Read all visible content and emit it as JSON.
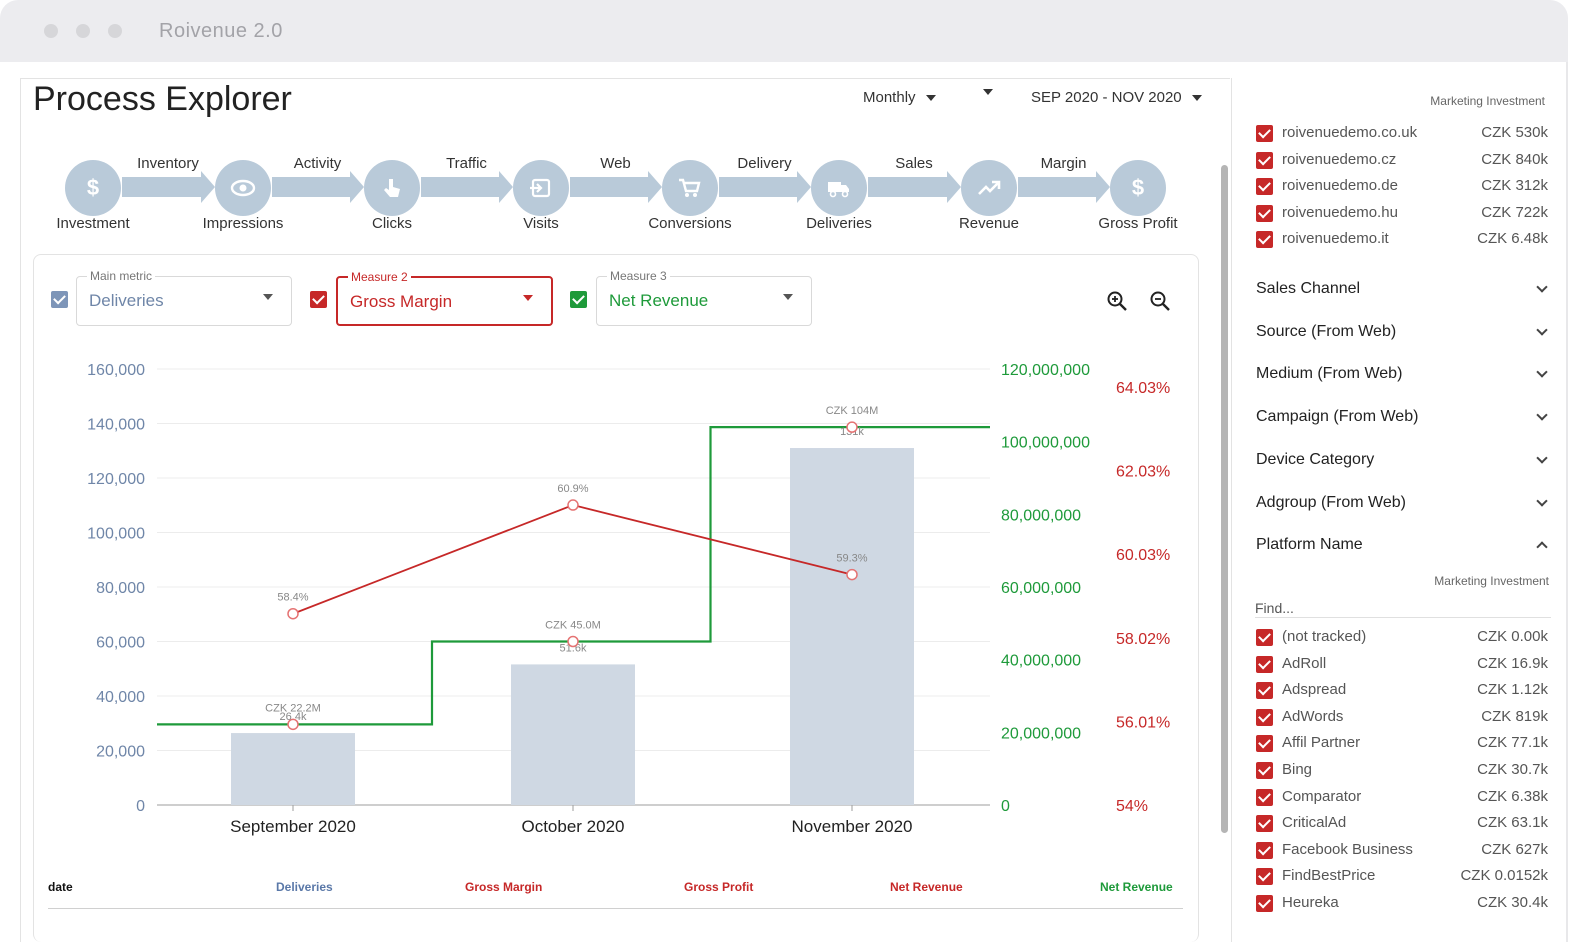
{
  "window": {
    "title": "Roivenue 2.0"
  },
  "page": {
    "title": "Process Explorer"
  },
  "controls": {
    "granularity": "Monthly",
    "date_range": "SEP 2020 - NOV 2020"
  },
  "funnel": {
    "stages": [
      {
        "label": "Investment",
        "icon": "dollar-icon"
      },
      {
        "label": "Impressions",
        "icon": "eye-icon"
      },
      {
        "label": "Clicks",
        "icon": "pointer-hand-icon"
      },
      {
        "label": "Visits",
        "icon": "enter-icon"
      },
      {
        "label": "Conversions",
        "icon": "cart-icon"
      },
      {
        "label": "Deliveries",
        "icon": "truck-icon"
      },
      {
        "label": "Revenue",
        "icon": "trending-up-icon"
      },
      {
        "label": "Gross Profit",
        "icon": "dollar-icon"
      }
    ],
    "transitions": [
      "Inventory",
      "Activity",
      "Traffic",
      "Web",
      "Delivery",
      "Sales",
      "Margin"
    ]
  },
  "metrics": {
    "main": {
      "caption": "Main metric",
      "value": "Deliveries",
      "color": "#6f86a8"
    },
    "measure2": {
      "caption": "Measure 2",
      "value": "Gross Margin",
      "color": "#c62828"
    },
    "measure3": {
      "caption": "Measure 3",
      "value": "Net Revenue",
      "color": "#1e9a3a"
    }
  },
  "chart_data": {
    "type": "bar",
    "categories": [
      "September 2020",
      "October 2020",
      "November 2020"
    ],
    "axes": {
      "left": {
        "ticks": [
          "160,000",
          "140,000",
          "120,000",
          "100,000",
          "80,000",
          "60,000",
          "40,000",
          "20,000",
          "0"
        ],
        "ylim": [
          0,
          160000
        ]
      },
      "right_green": {
        "ticks": [
          "120,000,000",
          "100,000,000",
          "80,000,000",
          "60,000,000",
          "40,000,000",
          "20,000,000",
          "0"
        ],
        "ylim": [
          0,
          120000000
        ]
      },
      "right_red": {
        "ticks": [
          "64.03%",
          "62.03%",
          "60.03%",
          "58.02%",
          "56.01%",
          "54%"
        ],
        "ylim": [
          54,
          64.03
        ]
      }
    },
    "grid": true,
    "series": [
      {
        "name": "Deliveries",
        "kind": "bar",
        "axis": "left",
        "values": [
          26400,
          51600,
          131000
        ],
        "labels": [
          "26.4k",
          "51.6k",
          "131k"
        ],
        "color": "#cfd8e3"
      },
      {
        "name": "Gross Margin",
        "kind": "line",
        "axis": "right_red",
        "values": [
          58.4,
          60.9,
          59.3
        ],
        "labels": [
          "58.4%",
          "60.9%",
          "59.3%"
        ],
        "color": "#c62828"
      },
      {
        "name": "Net Revenue",
        "kind": "step",
        "axis": "right_green",
        "values": [
          22200000,
          45000000,
          104000000
        ],
        "labels": [
          "CZK 22.2M",
          "CZK 45.0M",
          "CZK 104M"
        ],
        "color": "#1e9a3a"
      }
    ]
  },
  "table": {
    "headers": [
      {
        "label": "date",
        "color": "#111"
      },
      {
        "label": "Deliveries",
        "color": "#5a78a8"
      },
      {
        "label": "Gross Margin",
        "color": "#c62828"
      },
      {
        "label": "Gross Profit",
        "color": "#c62828"
      },
      {
        "label": "Net Revenue",
        "color": "#c62828"
      },
      {
        "label": "Net Revenue",
        "color": "#1e9a3a"
      }
    ]
  },
  "sidebar": {
    "top_caption": "Marketing Investment",
    "domains": [
      {
        "name": "roivenuedemo.co.uk",
        "value": "CZK 530k"
      },
      {
        "name": "roivenuedemo.cz",
        "value": "CZK 840k"
      },
      {
        "name": "roivenuedemo.de",
        "value": "CZK 312k"
      },
      {
        "name": "roivenuedemo.hu",
        "value": "CZK 722k"
      },
      {
        "name": "roivenuedemo.it",
        "value": "CZK 6.48k"
      }
    ],
    "sections": [
      "Sales Channel",
      "Source (From Web)",
      "Medium (From Web)",
      "Campaign (From Web)",
      "Device Category",
      "Adgroup (From Web)",
      "Platform Name"
    ],
    "platform_caption": "Marketing Investment",
    "find_placeholder": "Find...",
    "platforms": [
      {
        "name": "(not tracked)",
        "value": "CZK 0.00k"
      },
      {
        "name": "AdRoll",
        "value": "CZK 16.9k"
      },
      {
        "name": "Adspread",
        "value": "CZK 1.12k"
      },
      {
        "name": "AdWords",
        "value": "CZK 819k"
      },
      {
        "name": "Affil Partner",
        "value": "CZK 77.1k"
      },
      {
        "name": "Bing",
        "value": "CZK 30.7k"
      },
      {
        "name": "Comparator",
        "value": "CZK 6.38k"
      },
      {
        "name": "CriticalAd",
        "value": "CZK 63.1k"
      },
      {
        "name": "Facebook Business",
        "value": "CZK 627k"
      },
      {
        "name": "FindBestPrice",
        "value": "CZK 0.0152k"
      },
      {
        "name": "Heureka",
        "value": "CZK 30.4k"
      }
    ]
  }
}
